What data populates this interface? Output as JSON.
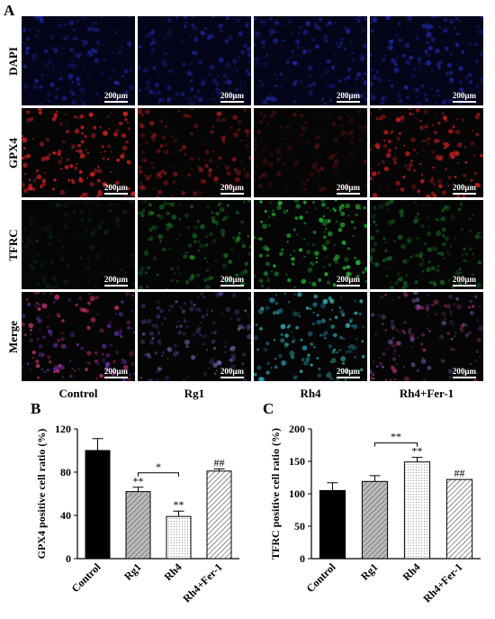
{
  "panel_a": {
    "letter": "A",
    "rows": [
      "DAPI",
      "GPX4",
      "TFRC",
      "Merge"
    ],
    "columns": [
      "Control",
      "Rg1",
      "Rh4",
      "Rh4+Fer-1"
    ],
    "scale_bar_label": "200μm",
    "colors": {
      "DAPI": "#2233cc",
      "GPX4": "#dd2222",
      "TFRC": "#22aa33",
      "Merge": "#9944bb"
    }
  },
  "panel_b": {
    "letter": "B"
  },
  "panel_c": {
    "letter": "C"
  },
  "chart_data": [
    {
      "type": "bar",
      "ylabel": "GPX4 positive cell ratio (%)",
      "xlabel": "",
      "categories": [
        "Control",
        "Rg1",
        "Rh4",
        "Rh4+Fer-1"
      ],
      "values": [
        100,
        62,
        39,
        81
      ],
      "errors": [
        11,
        4,
        5,
        2
      ],
      "ylim": [
        0,
        120
      ],
      "yticks": [
        0,
        40,
        80,
        120
      ],
      "annotations": [
        "",
        "**",
        "**",
        "##"
      ],
      "comparison": {
        "from": "Rg1",
        "to": "Rh4",
        "label": "*"
      },
      "fills": [
        "solid-black",
        "gray-diagonal",
        "dotted-white",
        "white-diagonal"
      ]
    },
    {
      "type": "bar",
      "ylabel": "TFRC positive cell ratio (%)",
      "xlabel": "",
      "categories": [
        "Control",
        "Rg1",
        "Rh4",
        "Rh4+Fer-1"
      ],
      "values": [
        105,
        119,
        149,
        122
      ],
      "errors": [
        12,
        9,
        7,
        0
      ],
      "ylim": [
        0,
        200
      ],
      "yticks": [
        0,
        50,
        100,
        150,
        200
      ],
      "annotations": [
        "",
        "",
        "**",
        "##"
      ],
      "comparison": {
        "from": "Rg1",
        "to": "Rh4",
        "label": "**"
      },
      "fills": [
        "solid-black",
        "gray-diagonal",
        "dotted-white",
        "white-diagonal"
      ]
    }
  ]
}
